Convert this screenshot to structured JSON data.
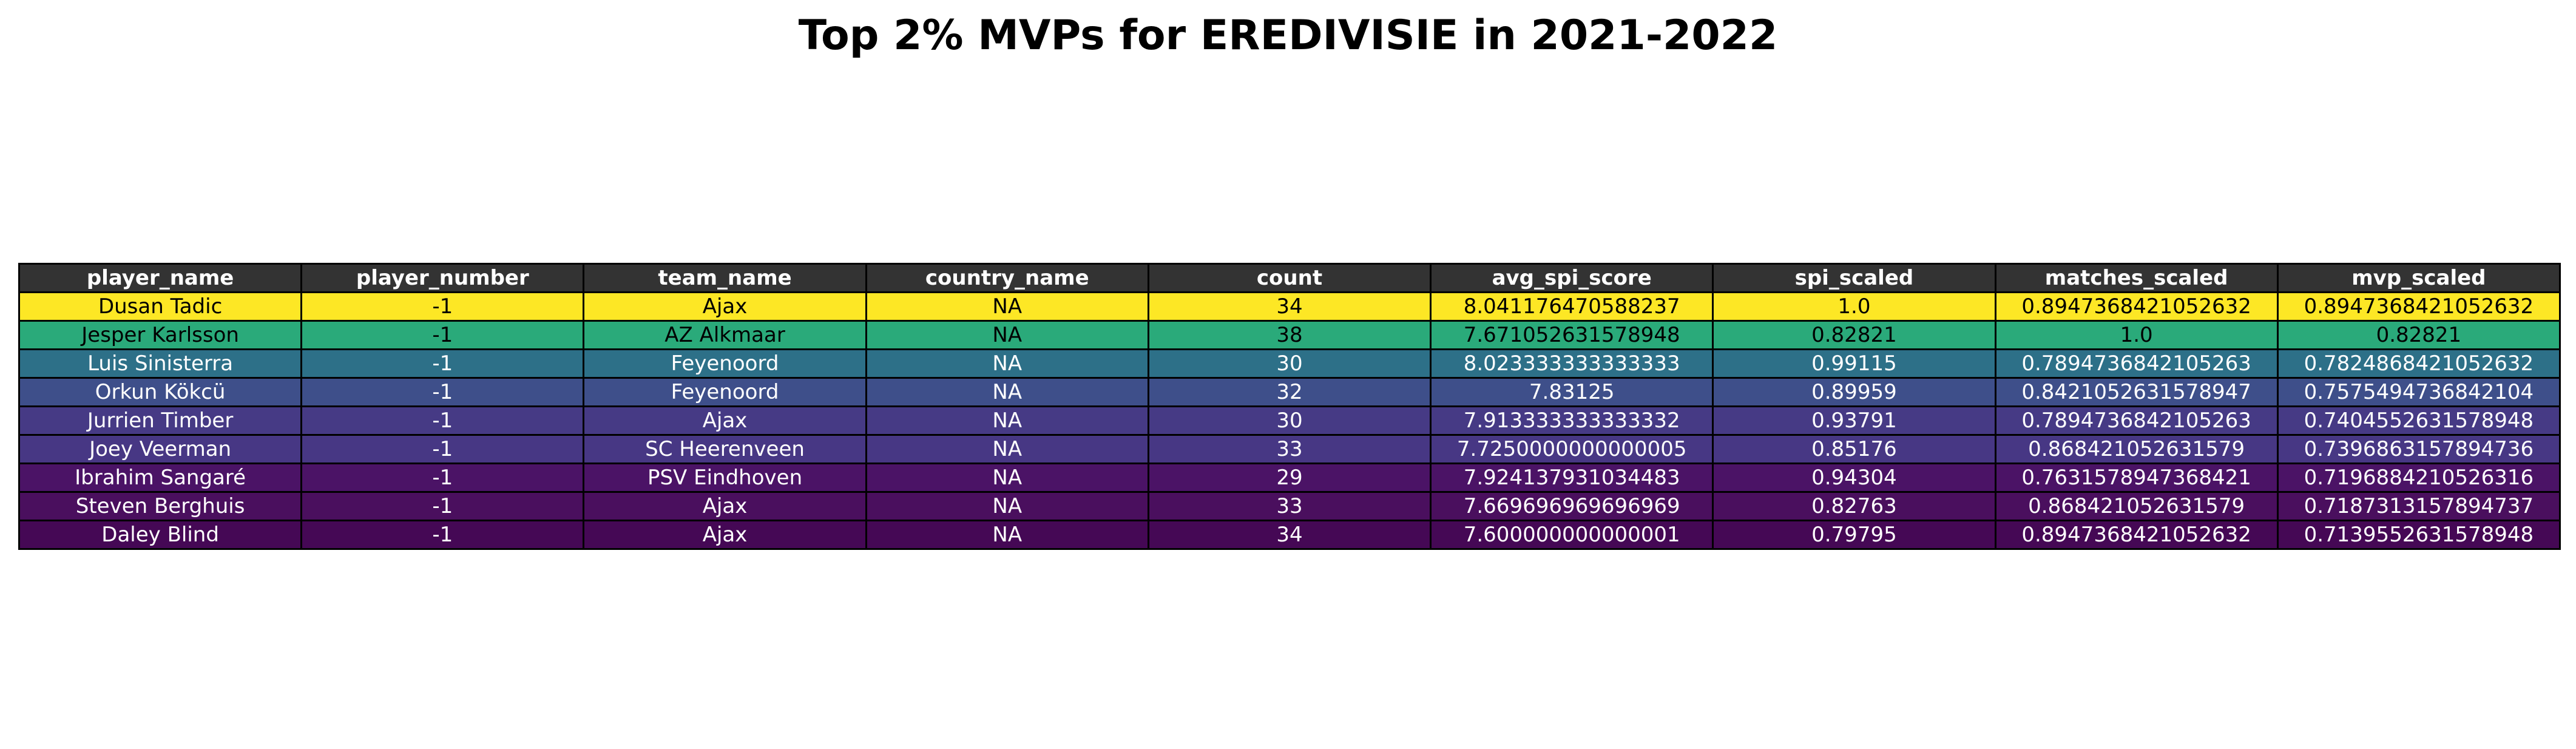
{
  "chart_data": {
    "type": "table",
    "title": "Top 2% MVPs for EREDIVISIE in 2021-2022",
    "columns": [
      "player_name",
      "player_number",
      "team_name",
      "country_name",
      "count",
      "avg_spi_score",
      "spi_scaled",
      "matches_scaled",
      "mvp_scaled"
    ],
    "rows": [
      {
        "cells": [
          "Dusan Tadic",
          "-1",
          "Ajax",
          "NA",
          "34",
          "8.041176470588237",
          "1.0",
          "0.8947368421052632",
          "0.8947368421052632"
        ],
        "bg": "#fde725",
        "fg": "#000000"
      },
      {
        "cells": [
          "Jesper Karlsson",
          "-1",
          "AZ Alkmaar",
          "NA",
          "38",
          "7.671052631578948",
          "0.82821",
          "1.0",
          "0.82821"
        ],
        "bg": "#2aaa7a",
        "fg": "#000000"
      },
      {
        "cells": [
          "Luis Sinisterra",
          "-1",
          "Feyenoord",
          "NA",
          "30",
          "8.023333333333333",
          "0.99115",
          "0.7894736842105263",
          "0.7824868421052632"
        ],
        "bg": "#2d7088",
        "fg": "#ffffff"
      },
      {
        "cells": [
          "Orkun Kökcü",
          "-1",
          "Feyenoord",
          "NA",
          "32",
          "7.83125",
          "0.89959",
          "0.8421052631578947",
          "0.7575494736842104"
        ],
        "bg": "#3e4f8a",
        "fg": "#ffffff"
      },
      {
        "cells": [
          "Jurrien Timber",
          "-1",
          "Ajax",
          "NA",
          "30",
          "7.913333333333332",
          "0.93791",
          "0.7894736842105263",
          "0.7404552631578948"
        ],
        "bg": "#463a85",
        "fg": "#ffffff"
      },
      {
        "cells": [
          "Joey Veerman",
          "-1",
          "SC Heerenveen",
          "NA",
          "33",
          "7.7250000000000005",
          "0.85176",
          "0.868421052631579",
          "0.7396863157894736"
        ],
        "bg": "#473784",
        "fg": "#ffffff"
      },
      {
        "cells": [
          "Ibrahim Sangaré",
          "-1",
          "PSV Eindhoven",
          "NA",
          "29",
          "7.924137931034483",
          "0.94304",
          "0.7631578947368421",
          "0.7196884210526316"
        ],
        "bg": "#4b1366",
        "fg": "#ffffff"
      },
      {
        "cells": [
          "Steven Berghuis",
          "-1",
          "Ajax",
          "NA",
          "33",
          "7.669696969696969",
          "0.82763",
          "0.868421052631579",
          "0.7187313157894737"
        ],
        "bg": "#4a0f5e",
        "fg": "#ffffff"
      },
      {
        "cells": [
          "Daley Blind",
          "-1",
          "Ajax",
          "NA",
          "34",
          "7.600000000000001",
          "0.79795",
          "0.8947368421052632",
          "0.7139552631578948"
        ],
        "bg": "#450855",
        "fg": "#ffffff"
      }
    ]
  }
}
